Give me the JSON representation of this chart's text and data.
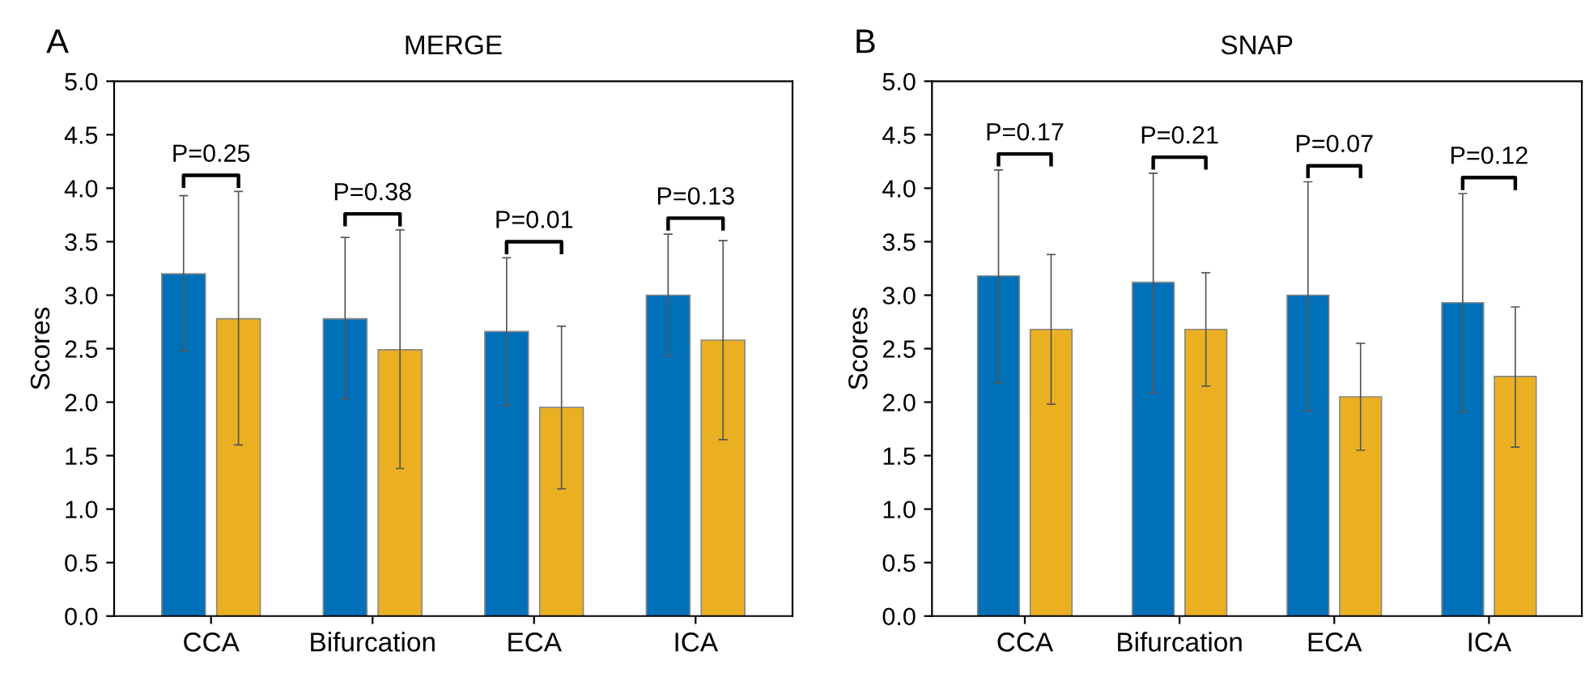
{
  "chart_data": [
    {
      "type": "bar",
      "title": "MERGE",
      "ylabel": "Scores",
      "categories": [
        "CCA",
        "Bifurcation",
        "ECA",
        "ICA"
      ],
      "ylim": [
        0,
        5
      ],
      "yticks": [
        {
          "value": 0,
          "label": "0.0"
        },
        {
          "value": 0.5,
          "label": "0.5"
        },
        {
          "value": 1,
          "label": "1.0"
        },
        {
          "value": 1.5,
          "label": "1.5"
        },
        {
          "value": 2,
          "label": "2.0"
        },
        {
          "value": 2.5,
          "label": "2.5"
        },
        {
          "value": 3,
          "label": "3.0"
        },
        {
          "value": 3.5,
          "label": "3.5"
        },
        {
          "value": 4,
          "label": "4.0"
        },
        {
          "value": 4.5,
          "label": "4.5"
        },
        {
          "value": 5,
          "label": "5.0"
        }
      ],
      "grid": false,
      "series": [
        {
          "color": "#0070b8",
          "values": [
            3.2,
            2.78,
            2.66,
            3.0
          ],
          "errors": [
            [
              2.48,
              3.93
            ],
            [
              2.03,
              3.54
            ],
            [
              1.97,
              3.35
            ],
            [
              2.43,
              3.57
            ]
          ]
        },
        {
          "color": "#ebb022",
          "values": [
            2.78,
            2.49,
            1.95,
            2.58
          ],
          "errors": [
            [
              1.6,
              3.97
            ],
            [
              1.38,
              3.61
            ],
            [
              1.19,
              2.71
            ],
            [
              1.65,
              3.51
            ]
          ]
        }
      ],
      "annotations": [
        "A",
        "P=0.25",
        "P=0.38",
        "P=0.01",
        "P=0.13"
      ]
    },
    {
      "type": "bar",
      "title": "SNAP",
      "ylabel": "Scores",
      "categories": [
        "CCA",
        "Bifurcation",
        "ECA",
        "ICA"
      ],
      "ylim": [
        0,
        5
      ],
      "yticks": [
        {
          "value": 0,
          "label": "0.0"
        },
        {
          "value": 0.5,
          "label": "0.5"
        },
        {
          "value": 1,
          "label": "1.0"
        },
        {
          "value": 1.5,
          "label": "1.5"
        },
        {
          "value": 2,
          "label": "2.0"
        },
        {
          "value": 2.5,
          "label": "2.5"
        },
        {
          "value": 3,
          "label": "3.0"
        },
        {
          "value": 3.5,
          "label": "3.5"
        },
        {
          "value": 4,
          "label": "4.0"
        },
        {
          "value": 4.5,
          "label": "4.5"
        },
        {
          "value": 5,
          "label": "5.0"
        }
      ],
      "grid": false,
      "series": [
        {
          "color": "#0070b8",
          "values": [
            3.18,
            3.12,
            3.0,
            2.93
          ],
          "errors": [
            [
              2.18,
              4.17
            ],
            [
              2.09,
              4.14
            ],
            [
              1.92,
              4.06
            ],
            [
              1.91,
              3.95
            ]
          ]
        },
        {
          "color": "#ebb022",
          "values": [
            2.68,
            2.68,
            2.05,
            2.24
          ],
          "errors": [
            [
              1.98,
              3.38
            ],
            [
              2.15,
              3.21
            ],
            [
              1.55,
              2.55
            ],
            [
              1.58,
              2.89
            ]
          ]
        }
      ],
      "annotations": [
        "B",
        "P=0.17",
        "P=0.21",
        "P=0.07",
        "P=0.12"
      ]
    }
  ]
}
